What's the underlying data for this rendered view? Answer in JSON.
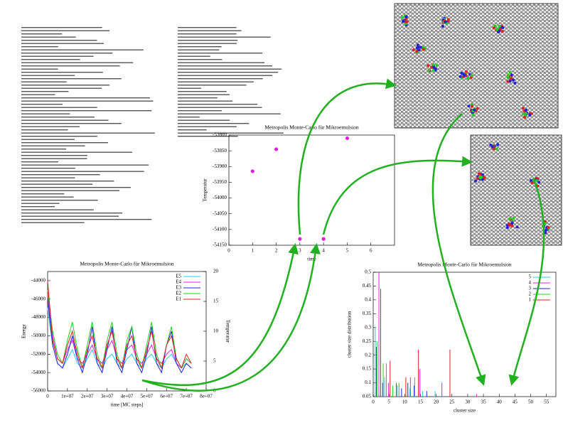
{
  "chart_data": [
    {
      "type": "scatter",
      "title": "Metropolis Monte-Carlo für Mikroemulsion",
      "xlabel": "time",
      "ylabel": "Temperatur",
      "x": [
        1,
        2,
        3,
        4,
        5
      ],
      "values": [
        -53915,
        -53845,
        -54130,
        -54130,
        -53810
      ],
      "color": "#e020e0",
      "xlim": [
        0,
        7
      ],
      "xticks": [
        0,
        1,
        2,
        3,
        4,
        5,
        6
      ],
      "ylim": [
        -54150,
        -53800
      ],
      "yticks": [
        -54150,
        -54100,
        -54050,
        -54000,
        -53950,
        -53900,
        -53850,
        -53800
      ]
    },
    {
      "type": "line",
      "title": "Metropolis Monte-Carlo für Mikroemulsion",
      "xlabel": "time [MC steps]",
      "ylabel": "Energy",
      "y2label": "Temperatur",
      "x": [
        0,
        2500000,
        5000000,
        7500000,
        10000000,
        12500000,
        15000000,
        17500000,
        20000000,
        22500000,
        25000000,
        27500000,
        30000000,
        32500000,
        35000000,
        37500000,
        40000000,
        42500000,
        45000000,
        47500000,
        50000000,
        52500000,
        55000000,
        57500000,
        60000000,
        62500000,
        65000000,
        67500000,
        70000000,
        72500000
      ],
      "series": [
        {
          "name": "E5",
          "color": "#20d0e0",
          "values": [
            -47000,
            -51000,
            -53000,
            -53500,
            -52500,
            -51500,
            -53000,
            -53500,
            -52500,
            -51500,
            -53000,
            -53500,
            -52500,
            -52000,
            -53000,
            -53500,
            -52500,
            -52000,
            -53000,
            -53500,
            -52500,
            -52000,
            -53000,
            -53500,
            -52500,
            -52000,
            -53000,
            -53500,
            -53000,
            -53500
          ]
        },
        {
          "name": "E4",
          "color": "#e020e0",
          "values": [
            -45500,
            -50000,
            -52500,
            -53000,
            -51500,
            -50500,
            -52500,
            -53000,
            -52000,
            -51000,
            -52500,
            -53000,
            -51500,
            -50500,
            -52500,
            -53000,
            -51500,
            -51000,
            -52500,
            -53000,
            -52000,
            -51000,
            -52500,
            -53000,
            -52000,
            -51500,
            -53000,
            -53500,
            -52500,
            -53000
          ]
        },
        {
          "name": "E3",
          "color": "#2020e0",
          "values": [
            -46000,
            -51000,
            -53000,
            -53500,
            -52000,
            -50000,
            -52500,
            -54000,
            -52000,
            -49000,
            -53000,
            -54000,
            -51500,
            -49000,
            -53000,
            -54000,
            -51500,
            -49000,
            -53000,
            -54000,
            -52000,
            -49000,
            -53000,
            -54000,
            -51000,
            -49500,
            -53000,
            -54000,
            -53000,
            -53500
          ]
        },
        {
          "name": "E2",
          "color": "#20d020",
          "values": [
            -45000,
            -49500,
            -52000,
            -53000,
            -50500,
            -48500,
            -51500,
            -53500,
            -51000,
            -48500,
            -52000,
            -53500,
            -50500,
            -48500,
            -52000,
            -53500,
            -50500,
            -49000,
            -52000,
            -53500,
            -51000,
            -48500,
            -52000,
            -53500,
            -51000,
            -49000,
            -52500,
            -53500,
            -52500,
            -53000
          ]
        },
        {
          "name": "E1",
          "color": "#e02020",
          "values": [
            -44000,
            -50500,
            -52500,
            -53000,
            -51000,
            -49500,
            -52000,
            -53500,
            -51500,
            -50000,
            -52500,
            -53500,
            -51000,
            -49500,
            -52500,
            -53500,
            -51000,
            -50000,
            -52500,
            -53500,
            -51500,
            -49500,
            -52500,
            -53500,
            -51000,
            -50000,
            -52500,
            -53500,
            -52000,
            -53000
          ]
        }
      ],
      "xlim": [
        0,
        80000000
      ],
      "xticks": [
        0,
        {
          "value": 10000000,
          "label": "1e+07"
        },
        {
          "value": 20000000,
          "label": "2e+07"
        },
        {
          "value": 30000000,
          "label": "3e+07"
        },
        {
          "value": 40000000,
          "label": "4e+07"
        },
        {
          "value": 50000000,
          "label": "5e+07"
        },
        {
          "value": 60000000,
          "label": "6e+07"
        },
        {
          "value": 70000000,
          "label": "7e+07"
        },
        {
          "value": 80000000,
          "label": "8e+07"
        }
      ],
      "ylim": [
        -56000,
        -43000
      ],
      "yticks": [
        -56000,
        -54000,
        -52000,
        -50000,
        -48000,
        -46000,
        -44000
      ],
      "y2lim": [
        0,
        20
      ],
      "y2ticks": [
        0,
        5,
        10,
        15,
        20
      ]
    },
    {
      "type": "bar",
      "title": "Metropolis Monte-Carlo für Mikroemulsion",
      "xlabel": "cluster size",
      "ylabel": "cluster size distribution",
      "series": [
        {
          "name": "5",
          "color": "#20d0e0",
          "x": [
            1,
            4,
            8,
            12,
            16,
            20
          ],
          "values": [
            0.3,
            0.12,
            0.09,
            0.08,
            0.07,
            0.07
          ]
        },
        {
          "name": "4",
          "color": "#e020e0",
          "x": [
            2,
            5,
            12,
            15,
            22,
            33
          ],
          "values": [
            0.5,
            0.1,
            0.12,
            0.15,
            0.1,
            0.06
          ]
        },
        {
          "name": "3",
          "color": "#2020e0",
          "x": [
            1,
            3,
            9,
            11,
            13,
            17
          ],
          "values": [
            0.23,
            0.1,
            0.08,
            0.1,
            0.09,
            0.07
          ]
        },
        {
          "name": "2",
          "color": "#20d020",
          "x": [
            1,
            3,
            4,
            6,
            8,
            13
          ],
          "values": [
            0.25,
            0.17,
            0.17,
            0.09,
            0.1,
            0.12
          ]
        },
        {
          "name": "1",
          "color": "#e02020",
          "x": [
            2,
            5,
            7,
            10,
            14,
            24
          ],
          "values": [
            0.44,
            0.18,
            0.1,
            0.12,
            0.22,
            0.22
          ]
        }
      ],
      "xlim": [
        0,
        58
      ],
      "xticks": [
        0,
        5,
        10,
        15,
        20,
        25,
        30,
        35,
        40,
        45,
        50,
        55
      ],
      "ylim": [
        0.05,
        0.5
      ],
      "yticks": [
        0.05,
        0.1,
        0.15,
        0.2,
        0.25,
        0.3,
        0.35,
        0.4,
        0.45,
        0.5
      ]
    }
  ]
}
